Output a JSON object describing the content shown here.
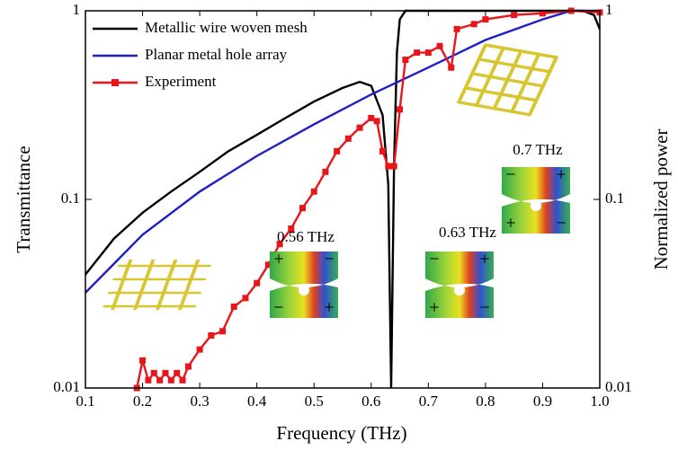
{
  "chart_data": {
    "type": "line",
    "x_label": "Frequency (THz)",
    "y_label": "Transmittance",
    "y2_label": "Normalized power",
    "log_y": true,
    "xlim": [
      0.1,
      1.0
    ],
    "xticks": [
      0.1,
      0.2,
      0.3,
      0.4,
      0.5,
      0.6,
      0.7,
      0.8,
      0.9,
      {
        "value": 1.0,
        "label": "1.0"
      }
    ],
    "ylim": [
      0.01,
      1
    ],
    "yticks": [
      0.01,
      0.1,
      1
    ],
    "y2lim": [
      0.01,
      1
    ],
    "y2ticks": [
      0.01,
      0.1,
      1
    ],
    "legend": "upper left",
    "series": [
      {
        "name": "Metallic wire woven mesh",
        "color": "#000000",
        "marker": false,
        "x": [
          0.1,
          0.15,
          0.2,
          0.25,
          0.3,
          0.35,
          0.4,
          0.45,
          0.5,
          0.55,
          0.58,
          0.6,
          0.62,
          0.63,
          0.635,
          0.64,
          0.645,
          0.65,
          0.66,
          0.7,
          0.8,
          0.9,
          0.97,
          0.99,
          1.0
        ],
        "values": [
          0.04,
          0.062,
          0.085,
          0.11,
          0.14,
          0.18,
          0.22,
          0.27,
          0.33,
          0.39,
          0.42,
          0.4,
          0.28,
          0.12,
          0.01,
          0.15,
          0.6,
          0.9,
          1.0,
          1.0,
          1.0,
          1.0,
          1.0,
          0.95,
          0.8
        ]
      },
      {
        "name": "Planar metal hole array",
        "color": "#1f1fc8",
        "marker": false,
        "x": [
          0.1,
          0.2,
          0.3,
          0.4,
          0.5,
          0.6,
          0.7,
          0.8,
          0.9,
          0.95,
          1.0
        ],
        "values": [
          0.032,
          0.065,
          0.11,
          0.17,
          0.25,
          0.36,
          0.5,
          0.7,
          0.9,
          1.0,
          1.0
        ]
      },
      {
        "name": "Experiment",
        "color": "#e8161b",
        "marker": true,
        "x": [
          0.19,
          0.2,
          0.21,
          0.22,
          0.23,
          0.24,
          0.25,
          0.26,
          0.27,
          0.28,
          0.3,
          0.32,
          0.34,
          0.36,
          0.38,
          0.4,
          0.42,
          0.44,
          0.46,
          0.48,
          0.5,
          0.52,
          0.54,
          0.56,
          0.58,
          0.6,
          0.61,
          0.62,
          0.63,
          0.64,
          0.65,
          0.66,
          0.68,
          0.7,
          0.72,
          0.74,
          0.75,
          0.78,
          0.8,
          0.85,
          0.9,
          0.95,
          1.0
        ],
        "values": [
          0.01,
          0.014,
          0.011,
          0.012,
          0.011,
          0.012,
          0.011,
          0.012,
          0.011,
          0.013,
          0.016,
          0.019,
          0.02,
          0.027,
          0.03,
          0.036,
          0.045,
          0.058,
          0.07,
          0.09,
          0.11,
          0.14,
          0.18,
          0.21,
          0.24,
          0.27,
          0.26,
          0.18,
          0.15,
          0.15,
          0.3,
          0.55,
          0.6,
          0.6,
          0.65,
          0.5,
          0.8,
          0.85,
          0.9,
          0.95,
          0.97,
          1.0,
          0.98
        ]
      }
    ],
    "annotations": [
      {
        "text": "0.56 THz",
        "signs": [
          "+",
          "−",
          "−",
          "+"
        ]
      },
      {
        "text": "0.63 THz",
        "signs": [
          "−",
          "+",
          "+",
          "−"
        ]
      },
      {
        "text": "0.7 THz",
        "signs": [
          "−",
          "+",
          "+",
          "−"
        ]
      }
    ]
  }
}
